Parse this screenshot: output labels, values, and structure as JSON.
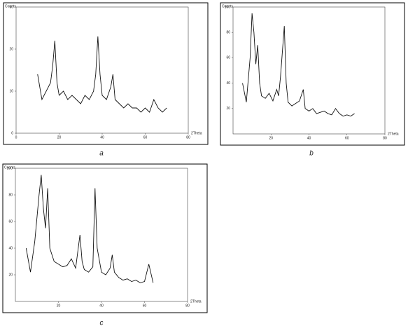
{
  "chart_data": [
    {
      "type": "line",
      "caption": "a",
      "y_label": "Counts",
      "x_label": "2Theta",
      "xlim": [
        0,
        80
      ],
      "xticks": [
        0,
        20,
        40,
        60,
        80
      ],
      "ylim": [
        0,
        30
      ],
      "yticks": [
        0,
        10,
        20,
        30
      ],
      "series": [
        {
          "color": "#111111",
          "x": [
            10,
            12,
            14,
            16,
            17,
            18,
            19,
            20,
            22,
            24,
            26,
            28,
            30,
            32,
            34,
            36,
            37,
            38,
            39,
            40,
            42,
            44,
            45,
            46,
            48,
            50,
            52,
            54,
            56,
            58,
            60,
            62,
            64,
            66,
            68,
            70
          ],
          "values": [
            14,
            8,
            10,
            12,
            16,
            22,
            12,
            9,
            10,
            8,
            9,
            8,
            7,
            9,
            8,
            10,
            14,
            23,
            14,
            9,
            8,
            11,
            14,
            8,
            7,
            6,
            7,
            6,
            6,
            5,
            6,
            5,
            8,
            6,
            5,
            6
          ]
        }
      ]
    },
    {
      "type": "line",
      "caption": "b",
      "y_label": "Counts",
      "x_label": "2Theta",
      "xlim": [
        0,
        80
      ],
      "xticks": [
        20,
        40,
        60,
        80
      ],
      "ylim": [
        0,
        100
      ],
      "yticks": [
        20,
        40,
        60,
        80,
        100
      ],
      "series": [
        {
          "color": "#111111",
          "x": [
            5,
            7,
            9,
            10,
            11,
            12,
            13,
            14,
            15,
            17,
            19,
            21,
            23,
            24,
            25,
            27,
            28,
            29,
            31,
            33,
            35,
            37,
            38,
            40,
            42,
            44,
            46,
            48,
            50,
            52,
            54,
            56,
            58,
            60,
            62,
            64
          ],
          "values": [
            40,
            25,
            60,
            95,
            80,
            55,
            70,
            40,
            30,
            28,
            32,
            26,
            35,
            30,
            45,
            85,
            40,
            25,
            22,
            24,
            26,
            35,
            20,
            18,
            20,
            16,
            17,
            18,
            16,
            15,
            20,
            16,
            14,
            15,
            14,
            16
          ]
        }
      ]
    },
    {
      "type": "line",
      "caption": "c",
      "y_label": "Counts",
      "x_label": "2Theta",
      "xlim": [
        0,
        80
      ],
      "xticks": [
        20,
        40,
        60,
        80
      ],
      "ylim": [
        0,
        100
      ],
      "yticks": [
        20,
        40,
        60,
        80,
        100
      ],
      "series": [
        {
          "color": "#111111",
          "x": [
            5,
            7,
            9,
            11,
            12,
            13,
            14,
            15,
            16,
            18,
            20,
            22,
            24,
            26,
            28,
            30,
            31,
            32,
            34,
            36,
            37,
            38,
            40,
            42,
            44,
            45,
            46,
            48,
            50,
            52,
            54,
            56,
            58,
            60,
            62,
            64
          ],
          "values": [
            40,
            22,
            45,
            80,
            95,
            70,
            55,
            85,
            40,
            30,
            28,
            26,
            27,
            32,
            25,
            50,
            30,
            24,
            22,
            26,
            85,
            40,
            22,
            20,
            25,
            35,
            22,
            18,
            16,
            17,
            15,
            16,
            14,
            15,
            28,
            14
          ]
        }
      ]
    }
  ]
}
